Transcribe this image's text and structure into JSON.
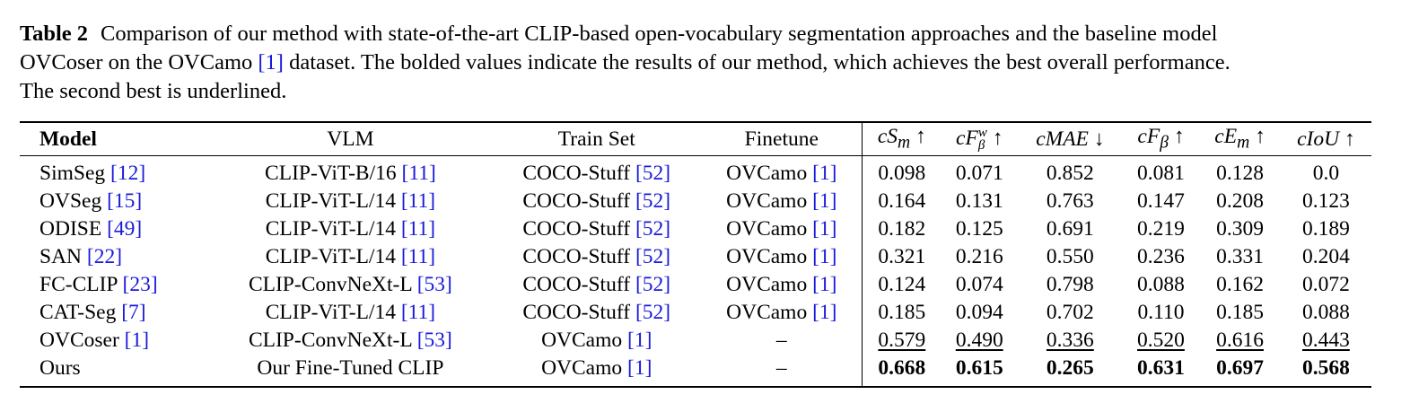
{
  "caption": {
    "label": "Table 2",
    "text_line1": "Comparison of our method with state-of-the-art CLIP-based open-vocabulary segmentation approaches and the baseline model",
    "text_line2a": "OVCoser on the OVCamo ",
    "text_line2_cite": "[1]",
    "text_line2b": " dataset. The bolded values indicate the results of our method, which achieves the best overall performance.",
    "text_line3": "The second best is underlined."
  },
  "headers": {
    "model": "Model",
    "vlm": "VLM",
    "train_set": "Train Set",
    "finetune": "Finetune",
    "cSm": "cS",
    "cSm_sub": "m",
    "cFw": "cF",
    "cFw_sup": "w",
    "cFw_sub": "β",
    "cMAE": "cMAE",
    "cFb": "cF",
    "cFb_sub": "β",
    "cEm": "cE",
    "cEm_sub": "m",
    "cIoU": "cIoU",
    "up": "↑",
    "down": "↓"
  },
  "rows": [
    {
      "model": "SimSeg ",
      "model_cite": "[12]",
      "vlm": "CLIP-ViT-B/16 ",
      "vlm_cite": "[11]",
      "train": "COCO-Stuff ",
      "train_cite": "[52]",
      "finetune": "OVCamo ",
      "finetune_cite": "[1]",
      "v": [
        "0.098",
        "0.071",
        "0.852",
        "0.081",
        "0.128",
        "0.0"
      ]
    },
    {
      "model": "OVSeg ",
      "model_cite": "[15]",
      "vlm": "CLIP-ViT-L/14 ",
      "vlm_cite": "[11]",
      "train": "COCO-Stuff ",
      "train_cite": "[52]",
      "finetune": "OVCamo ",
      "finetune_cite": "[1]",
      "v": [
        "0.164",
        "0.131",
        "0.763",
        "0.147",
        "0.208",
        "0.123"
      ]
    },
    {
      "model": "ODISE ",
      "model_cite": "[49]",
      "vlm": "CLIP-ViT-L/14 ",
      "vlm_cite": "[11]",
      "train": "COCO-Stuff ",
      "train_cite": "[52]",
      "finetune": "OVCamo ",
      "finetune_cite": "[1]",
      "v": [
        "0.182",
        "0.125",
        "0.691",
        "0.219",
        "0.309",
        "0.189"
      ]
    },
    {
      "model": "SAN ",
      "model_cite": "[22]",
      "vlm": "CLIP-ViT-L/14 ",
      "vlm_cite": "[11]",
      "train": "COCO-Stuff ",
      "train_cite": "[52]",
      "finetune": "OVCamo ",
      "finetune_cite": "[1]",
      "v": [
        "0.321",
        "0.216",
        "0.550",
        "0.236",
        "0.331",
        "0.204"
      ]
    },
    {
      "model": "FC-CLIP ",
      "model_cite": "[23]",
      "vlm": "CLIP-ConvNeXt-L ",
      "vlm_cite": "[53]",
      "train": "COCO-Stuff ",
      "train_cite": "[52]",
      "finetune": "OVCamo ",
      "finetune_cite": "[1]",
      "v": [
        "0.124",
        "0.074",
        "0.798",
        "0.088",
        "0.162",
        "0.072"
      ]
    },
    {
      "model": "CAT-Seg ",
      "model_cite": "[7]",
      "vlm": "CLIP-ViT-L/14 ",
      "vlm_cite": "[11]",
      "train": "COCO-Stuff ",
      "train_cite": "[52]",
      "finetune": "OVCamo ",
      "finetune_cite": "[1]",
      "v": [
        "0.185",
        "0.094",
        "0.702",
        "0.110",
        "0.185",
        "0.088"
      ]
    },
    {
      "model": "OVCoser ",
      "model_cite": "[1]",
      "vlm": "CLIP-ConvNeXt-L ",
      "vlm_cite": "[53]",
      "train": "OVCamo ",
      "train_cite": "[1]",
      "finetune": "–",
      "finetune_cite": "",
      "v": [
        "0.579",
        "0.490",
        "0.336",
        "0.520",
        "0.616",
        "0.443"
      ]
    },
    {
      "model": "Ours",
      "model_cite": "",
      "vlm": "Our Fine-Tuned CLIP",
      "vlm_cite": "",
      "train": "OVCamo ",
      "train_cite": "[1]",
      "finetune": "–",
      "finetune_cite": "",
      "v": [
        "0.668",
        "0.615",
        "0.265",
        "0.631",
        "0.697",
        "0.568"
      ]
    }
  ]
}
